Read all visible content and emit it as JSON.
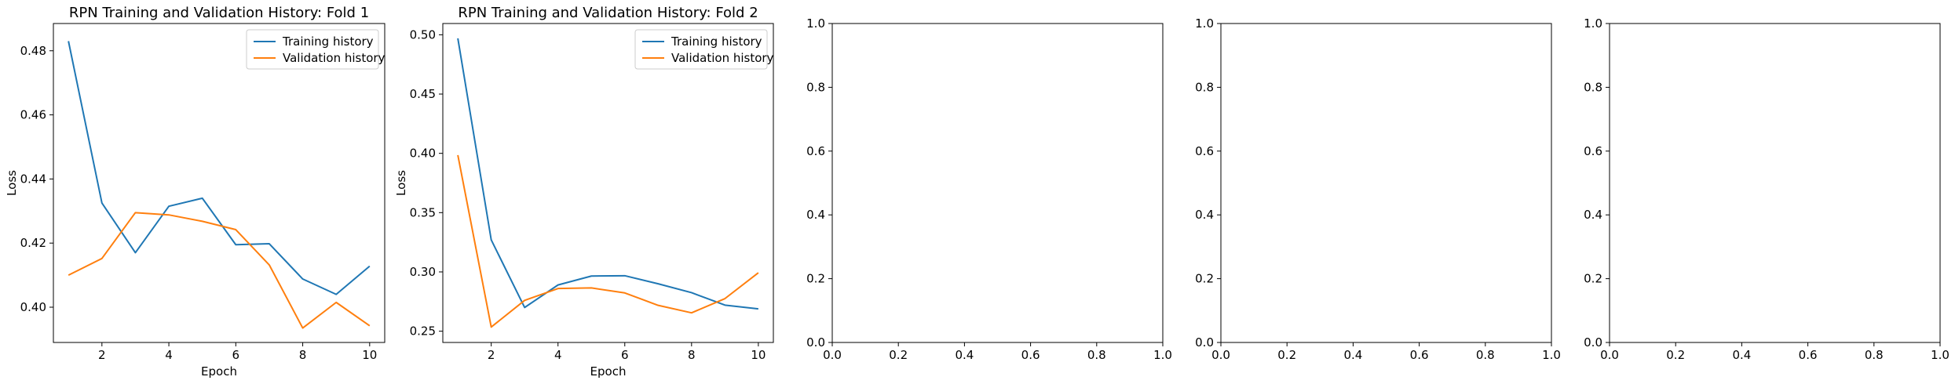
{
  "chart_data": [
    {
      "type": "line",
      "title": "RPN Training and Validation History: Fold 1",
      "xlabel": "Epoch",
      "ylabel": "Loss",
      "xlim": [
        0.55,
        10.45
      ],
      "ylim": [
        0.389,
        0.4885
      ],
      "xticks": [
        2,
        4,
        6,
        8,
        10
      ],
      "yticks": [
        0.4,
        0.42,
        0.44,
        0.46,
        0.48
      ],
      "ytick_labels": [
        "0.40",
        "0.42",
        "0.44",
        "0.46",
        "0.48"
      ],
      "x": [
        1,
        2,
        3,
        4,
        5,
        6,
        7,
        8,
        9,
        10
      ],
      "series": [
        {
          "name": "Training history",
          "color": "#1f77b4",
          "values": [
            0.483,
            0.4325,
            0.417,
            0.4315,
            0.434,
            0.4195,
            0.4198,
            0.4088,
            0.404,
            0.4128
          ]
        },
        {
          "name": "Validation history",
          "color": "#ff7f0e",
          "values": [
            0.41,
            0.4152,
            0.4295,
            0.4288,
            0.4268,
            0.4242,
            0.4132,
            0.3935,
            0.4015,
            0.3942
          ]
        }
      ],
      "legend": "upper right",
      "grid": false
    },
    {
      "type": "line",
      "title": "RPN Training and Validation History: Fold 2",
      "xlabel": "Epoch",
      "ylabel": "Loss",
      "xlim": [
        0.55,
        10.45
      ],
      "ylim": [
        0.2405,
        0.5095
      ],
      "xticks": [
        2,
        4,
        6,
        8,
        10
      ],
      "yticks": [
        0.25,
        0.3,
        0.35,
        0.4,
        0.45,
        0.5
      ],
      "ytick_labels": [
        "0.25",
        "0.30",
        "0.35",
        "0.40",
        "0.45",
        "0.50"
      ],
      "x": [
        1,
        2,
        3,
        4,
        5,
        6,
        7,
        8,
        9,
        10
      ],
      "series": [
        {
          "name": "Training history",
          "color": "#1f77b4",
          "values": [
            0.497,
            0.327,
            0.27,
            0.289,
            0.2965,
            0.2968,
            0.29,
            0.2825,
            0.272,
            0.2688
          ]
        },
        {
          "name": "Validation history",
          "color": "#ff7f0e",
          "values": [
            0.3985,
            0.2535,
            0.276,
            0.286,
            0.2865,
            0.2823,
            0.2718,
            0.2655,
            0.2775,
            0.2993
          ]
        }
      ],
      "legend": "upper right",
      "grid": false
    },
    {
      "type": "line",
      "title": "",
      "xlabel": "",
      "ylabel": "",
      "xlim": [
        0,
        1
      ],
      "ylim": [
        0,
        1
      ],
      "xticks": [
        0,
        0.2,
        0.4,
        0.6,
        0.8,
        1.0
      ],
      "yticks": [
        0,
        0.2,
        0.4,
        0.6,
        0.8,
        1.0
      ],
      "xtick_labels": [
        "0.0",
        "0.2",
        "0.4",
        "0.6",
        "0.8",
        "1.0"
      ],
      "ytick_labels": [
        "0.0",
        "0.2",
        "0.4",
        "0.6",
        "0.8",
        "1.0"
      ],
      "series": []
    },
    {
      "type": "line",
      "title": "",
      "xlabel": "",
      "ylabel": "",
      "xlim": [
        0,
        1
      ],
      "ylim": [
        0,
        1
      ],
      "xticks": [
        0,
        0.2,
        0.4,
        0.6,
        0.8,
        1.0
      ],
      "yticks": [
        0,
        0.2,
        0.4,
        0.6,
        0.8,
        1.0
      ],
      "xtick_labels": [
        "0.0",
        "0.2",
        "0.4",
        "0.6",
        "0.8",
        "1.0"
      ],
      "ytick_labels": [
        "0.0",
        "0.2",
        "0.4",
        "0.6",
        "0.8",
        "1.0"
      ],
      "series": []
    },
    {
      "type": "line",
      "title": "",
      "xlabel": "",
      "ylabel": "",
      "xlim": [
        0,
        1
      ],
      "ylim": [
        0,
        1
      ],
      "xticks": [
        0,
        0.2,
        0.4,
        0.6,
        0.8,
        1.0
      ],
      "yticks": [
        0,
        0.2,
        0.4,
        0.6,
        0.8,
        1.0
      ],
      "xtick_labels": [
        "0.0",
        "0.2",
        "0.4",
        "0.6",
        "0.8",
        "1.0"
      ],
      "ytick_labels": [
        "0.0",
        "0.2",
        "0.4",
        "0.6",
        "0.8",
        "1.0"
      ],
      "series": []
    }
  ]
}
